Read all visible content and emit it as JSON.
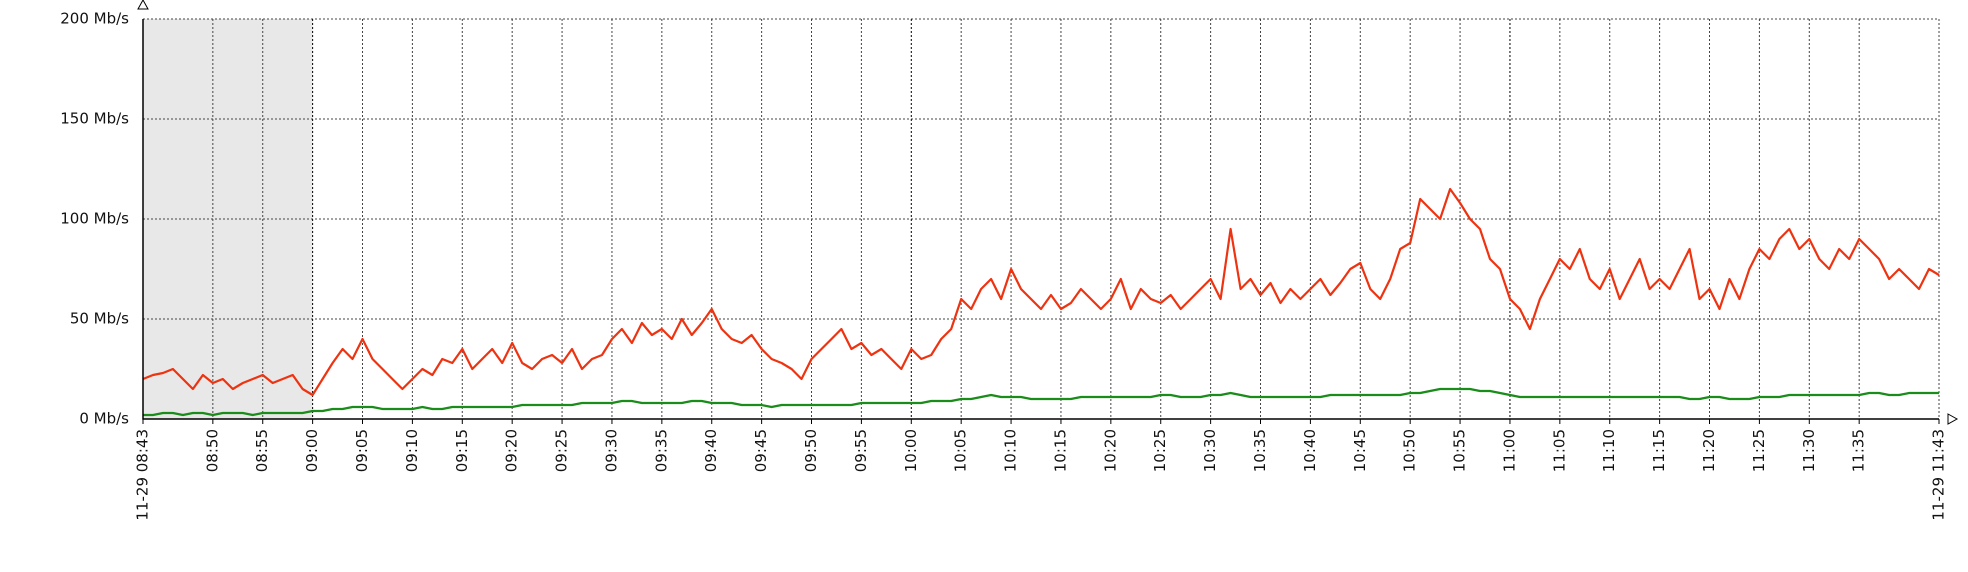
{
  "chart_data": {
    "type": "line",
    "x": [
      523,
      524,
      525,
      526,
      527,
      528,
      529,
      530,
      531,
      532,
      533,
      534,
      535,
      536,
      537,
      538,
      539,
      540,
      541,
      542,
      543,
      544,
      545,
      546,
      547,
      548,
      549,
      550,
      551,
      552,
      553,
      554,
      555,
      556,
      557,
      558,
      559,
      560,
      561,
      562,
      563,
      564,
      565,
      566,
      567,
      568,
      569,
      570,
      571,
      572,
      573,
      574,
      575,
      576,
      577,
      578,
      579,
      580,
      581,
      582,
      583,
      584,
      585,
      586,
      587,
      588,
      589,
      590,
      591,
      592,
      593,
      594,
      595,
      596,
      597,
      598,
      599,
      600,
      601,
      602,
      603,
      604,
      605,
      606,
      607,
      608,
      609,
      610,
      611,
      612,
      613,
      614,
      615,
      616,
      617,
      618,
      619,
      620,
      621,
      622,
      623,
      624,
      625,
      626,
      627,
      628,
      629,
      630,
      631,
      632,
      633,
      634,
      635,
      636,
      637,
      638,
      639,
      640,
      641,
      642,
      643,
      644,
      645,
      646,
      647,
      648,
      649,
      650,
      651,
      652,
      653,
      654,
      655,
      656,
      657,
      658,
      659,
      660,
      661,
      662,
      663,
      664,
      665,
      666,
      667,
      668,
      669,
      670,
      671,
      672,
      673,
      674,
      675,
      676,
      677,
      678,
      679,
      680,
      681,
      682,
      683,
      684,
      685,
      686,
      687,
      688,
      689,
      690,
      691,
      692,
      693,
      694,
      695,
      696,
      697,
      698,
      699,
      700,
      701,
      702,
      703
    ],
    "series": [
      {
        "color": "#ee3311",
        "values": [
          20,
          22,
          23,
          25,
          20,
          15,
          22,
          18,
          20,
          15,
          18,
          20,
          22,
          18,
          20,
          22,
          15,
          12,
          20,
          28,
          35,
          30,
          40,
          30,
          25,
          20,
          15,
          20,
          25,
          22,
          30,
          28,
          35,
          25,
          30,
          35,
          28,
          38,
          28,
          25,
          30,
          32,
          28,
          35,
          25,
          30,
          32,
          40,
          45,
          38,
          48,
          42,
          45,
          40,
          50,
          42,
          48,
          55,
          45,
          40,
          38,
          42,
          35,
          30,
          28,
          25,
          20,
          30,
          35,
          40,
          45,
          35,
          38,
          32,
          35,
          30,
          25,
          35,
          30,
          32,
          40,
          45,
          60,
          55,
          65,
          70,
          60,
          75,
          65,
          60,
          55,
          62,
          55,
          58,
          65,
          60,
          55,
          60,
          70,
          55,
          65,
          60,
          58,
          62,
          55,
          60,
          65,
          70,
          60,
          95,
          65,
          70,
          62,
          68,
          58,
          65,
          60,
          65,
          70,
          62,
          68,
          75,
          78,
          65,
          60,
          70,
          85,
          88,
          110,
          105,
          100,
          115,
          108,
          100,
          95,
          80,
          75,
          60,
          55,
          45,
          60,
          70,
          80,
          75,
          85,
          70,
          65,
          75,
          60,
          70,
          80,
          65,
          70,
          65,
          75,
          85,
          60,
          65,
          55,
          70,
          60,
          75,
          85,
          80,
          90,
          95,
          85,
          90,
          80,
          75,
          85,
          80,
          90,
          85,
          80,
          70,
          75,
          70,
          65,
          75,
          72
        ]
      },
      {
        "color": "#1a8c1a",
        "values": [
          2,
          2,
          3,
          3,
          2,
          3,
          3,
          2,
          3,
          3,
          3,
          2,
          3,
          3,
          3,
          3,
          3,
          4,
          4,
          5,
          5,
          6,
          6,
          6,
          5,
          5,
          5,
          5,
          6,
          5,
          5,
          6,
          6,
          6,
          6,
          6,
          6,
          6,
          7,
          7,
          7,
          7,
          7,
          7,
          8,
          8,
          8,
          8,
          9,
          9,
          8,
          8,
          8,
          8,
          8,
          9,
          9,
          8,
          8,
          8,
          7,
          7,
          7,
          6,
          7,
          7,
          7,
          7,
          7,
          7,
          7,
          7,
          8,
          8,
          8,
          8,
          8,
          8,
          8,
          9,
          9,
          9,
          10,
          10,
          11,
          12,
          11,
          11,
          11,
          10,
          10,
          10,
          10,
          10,
          11,
          11,
          11,
          11,
          11,
          11,
          11,
          11,
          12,
          12,
          11,
          11,
          11,
          12,
          12,
          13,
          12,
          11,
          11,
          11,
          11,
          11,
          11,
          11,
          11,
          12,
          12,
          12,
          12,
          12,
          12,
          12,
          12,
          13,
          13,
          14,
          15,
          15,
          15,
          15,
          14,
          14,
          13,
          12,
          11,
          11,
          11,
          11,
          11,
          11,
          11,
          11,
          11,
          11,
          11,
          11,
          11,
          11,
          11,
          11,
          11,
          10,
          10,
          11,
          11,
          10,
          10,
          10,
          11,
          11,
          11,
          12,
          12,
          12,
          12,
          12,
          12,
          12,
          12,
          13,
          13,
          12,
          12,
          13,
          13,
          13,
          13
        ]
      }
    ],
    "xlim": [
      523,
      703
    ],
    "xticks": [
      {
        "value": 523,
        "label": "11-29 08:43"
      },
      {
        "value": 530,
        "label": "08:50"
      },
      {
        "value": 535,
        "label": "08:55"
      },
      {
        "value": 540,
        "label": "09:00"
      },
      {
        "value": 545,
        "label": "09:05"
      },
      {
        "value": 550,
        "label": "09:10"
      },
      {
        "value": 555,
        "label": "09:15"
      },
      {
        "value": 560,
        "label": "09:20"
      },
      {
        "value": 565,
        "label": "09:25"
      },
      {
        "value": 570,
        "label": "09:30"
      },
      {
        "value": 575,
        "label": "09:35"
      },
      {
        "value": 580,
        "label": "09:40"
      },
      {
        "value": 585,
        "label": "09:45"
      },
      {
        "value": 590,
        "label": "09:50"
      },
      {
        "value": 595,
        "label": "09:55"
      },
      {
        "value": 600,
        "label": "10:00"
      },
      {
        "value": 605,
        "label": "10:05"
      },
      {
        "value": 610,
        "label": "10:10"
      },
      {
        "value": 615,
        "label": "10:15"
      },
      {
        "value": 620,
        "label": "10:20"
      },
      {
        "value": 625,
        "label": "10:25"
      },
      {
        "value": 630,
        "label": "10:30"
      },
      {
        "value": 635,
        "label": "10:35"
      },
      {
        "value": 640,
        "label": "10:40"
      },
      {
        "value": 645,
        "label": "10:45"
      },
      {
        "value": 650,
        "label": "10:50"
      },
      {
        "value": 655,
        "label": "10:55"
      },
      {
        "value": 660,
        "label": "11:00"
      },
      {
        "value": 665,
        "label": "11:05"
      },
      {
        "value": 670,
        "label": "11:10"
      },
      {
        "value": 675,
        "label": "11:15"
      },
      {
        "value": 680,
        "label": "11:20"
      },
      {
        "value": 685,
        "label": "11:25"
      },
      {
        "value": 690,
        "label": "11:30"
      },
      {
        "value": 695,
        "label": "11:35"
      },
      {
        "value": 703,
        "label": "11-29 11:43"
      }
    ],
    "ylim": [
      0,
      200
    ],
    "yticks": [
      {
        "value": 0,
        "label": "0 Mb/s"
      },
      {
        "value": 50,
        "label": "50 Mb/s"
      },
      {
        "value": 100,
        "label": "100 Mb/s"
      },
      {
        "value": 150,
        "label": "150 Mb/s"
      },
      {
        "value": 200,
        "label": "200 Mb/s"
      }
    ],
    "highlight_xrange": [
      523,
      540
    ],
    "grid": true
  }
}
